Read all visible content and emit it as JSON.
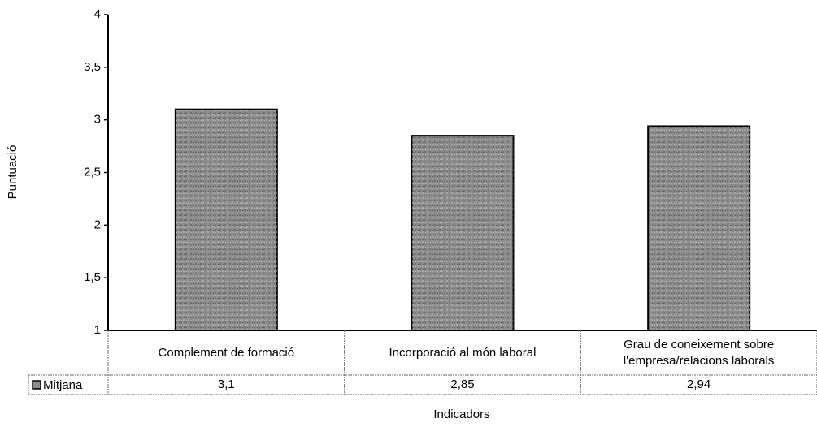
{
  "chart_data": {
    "type": "bar",
    "y_label": "Puntuació",
    "x_label": "Indicadors",
    "categories": [
      "Complement de formació",
      "Incorporació al món laboral",
      "Grau de coneixement sobre l'empresa/relacions laborals"
    ],
    "series": [
      {
        "name": "Mitjana",
        "color": "#8c8c8c",
        "values": [
          3.1,
          2.85,
          2.94
        ],
        "value_labels": [
          "3,1",
          "2,85",
          "2,94"
        ]
      }
    ],
    "ylim": [
      1,
      4
    ],
    "yticks": [
      1,
      {
        "value": 1.5,
        "label": "1,5"
      },
      2,
      {
        "value": 2.5,
        "label": "2,5"
      },
      3,
      {
        "value": 3.5,
        "label": "3,5"
      },
      4
    ],
    "grid": false,
    "data_table": true
  }
}
